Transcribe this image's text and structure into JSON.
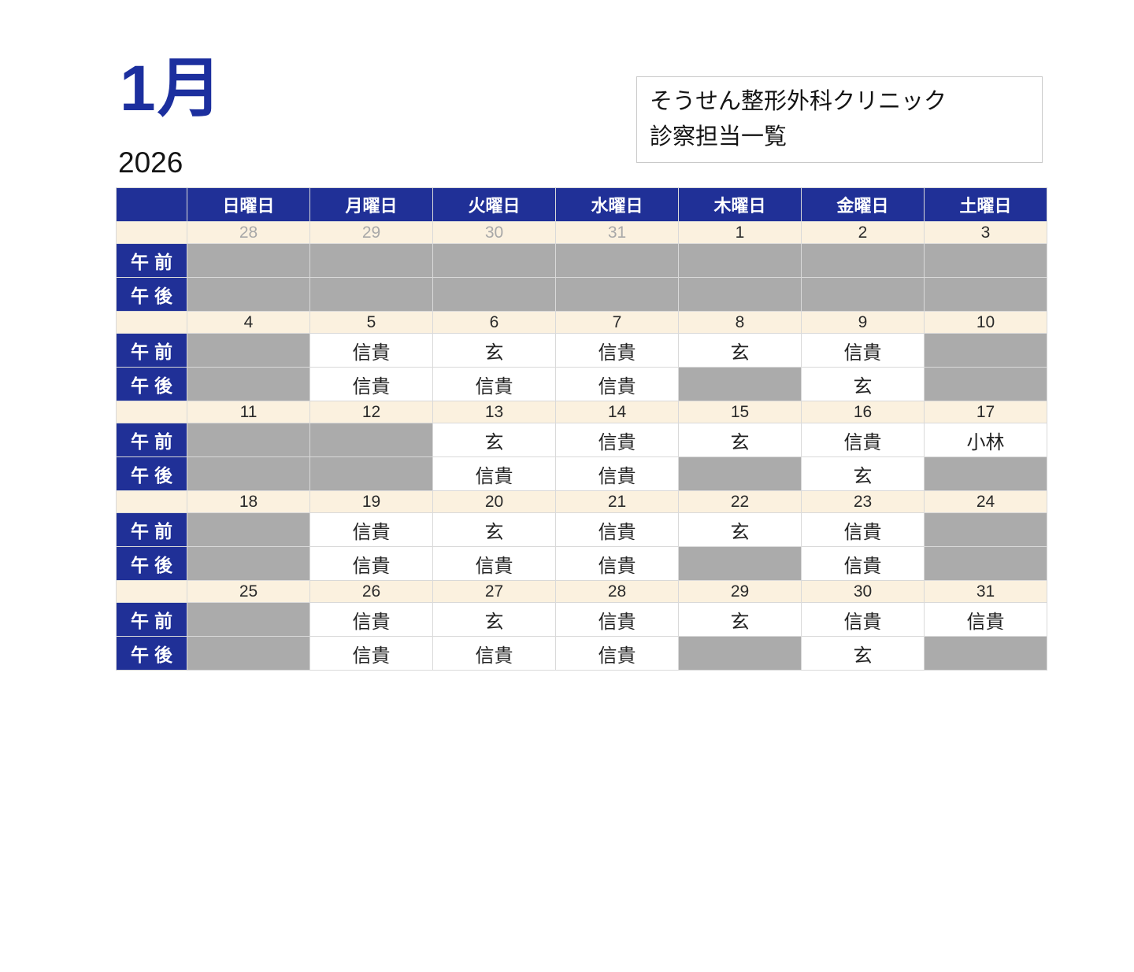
{
  "header": {
    "month_label": "1月",
    "year": "2026",
    "clinic_name": "そうせん整形外科クリニック",
    "subtitle": "診察担当一覧"
  },
  "colors": {
    "accent_blue": "#203097",
    "title_blue": "#1c2f9e",
    "date_row_cream": "#fbf1df",
    "closed_cell_gray": "#ababab",
    "other_month_text": "#a8a8a8",
    "grid_line": "#d9d9d9"
  },
  "table": {
    "weekday_headers": [
      "日曜日",
      "月曜日",
      "火曜日",
      "水曜日",
      "木曜日",
      "金曜日",
      "土曜日"
    ],
    "row_labels": {
      "am": "午前",
      "pm": "午後"
    },
    "weeks": [
      {
        "dates": [
          {
            "day": "28",
            "other_month": true
          },
          {
            "day": "29",
            "other_month": true
          },
          {
            "day": "30",
            "other_month": true
          },
          {
            "day": "31",
            "other_month": true
          },
          {
            "day": "1",
            "other_month": false
          },
          {
            "day": "2",
            "other_month": false
          },
          {
            "day": "3",
            "other_month": false
          }
        ],
        "am": [
          null,
          null,
          null,
          null,
          null,
          null,
          null
        ],
        "pm": [
          null,
          null,
          null,
          null,
          null,
          null,
          null
        ]
      },
      {
        "dates": [
          {
            "day": "4",
            "other_month": false
          },
          {
            "day": "5",
            "other_month": false
          },
          {
            "day": "6",
            "other_month": false
          },
          {
            "day": "7",
            "other_month": false
          },
          {
            "day": "8",
            "other_month": false
          },
          {
            "day": "9",
            "other_month": false
          },
          {
            "day": "10",
            "other_month": false
          }
        ],
        "am": [
          null,
          "信貴",
          "玄",
          "信貴",
          "玄",
          "信貴",
          null
        ],
        "pm": [
          null,
          "信貴",
          "信貴",
          "信貴",
          null,
          "玄",
          null
        ]
      },
      {
        "dates": [
          {
            "day": "11",
            "other_month": false
          },
          {
            "day": "12",
            "other_month": false
          },
          {
            "day": "13",
            "other_month": false
          },
          {
            "day": "14",
            "other_month": false
          },
          {
            "day": "15",
            "other_month": false
          },
          {
            "day": "16",
            "other_month": false
          },
          {
            "day": "17",
            "other_month": false
          }
        ],
        "am": [
          null,
          null,
          "玄",
          "信貴",
          "玄",
          "信貴",
          "小林"
        ],
        "pm": [
          null,
          null,
          "信貴",
          "信貴",
          null,
          "玄",
          null
        ]
      },
      {
        "dates": [
          {
            "day": "18",
            "other_month": false
          },
          {
            "day": "19",
            "other_month": false
          },
          {
            "day": "20",
            "other_month": false
          },
          {
            "day": "21",
            "other_month": false
          },
          {
            "day": "22",
            "other_month": false
          },
          {
            "day": "23",
            "other_month": false
          },
          {
            "day": "24",
            "other_month": false
          }
        ],
        "am": [
          null,
          "信貴",
          "玄",
          "信貴",
          "玄",
          "信貴",
          null
        ],
        "pm": [
          null,
          "信貴",
          "信貴",
          "信貴",
          null,
          "信貴",
          null
        ]
      },
      {
        "dates": [
          {
            "day": "25",
            "other_month": false
          },
          {
            "day": "26",
            "other_month": false
          },
          {
            "day": "27",
            "other_month": false
          },
          {
            "day": "28",
            "other_month": false
          },
          {
            "day": "29",
            "other_month": false
          },
          {
            "day": "30",
            "other_month": false
          },
          {
            "day": "31",
            "other_month": false
          }
        ],
        "am": [
          null,
          "信貴",
          "玄",
          "信貴",
          "玄",
          "信貴",
          "信貴"
        ],
        "pm": [
          null,
          "信貴",
          "信貴",
          "信貴",
          null,
          "玄",
          null
        ]
      }
    ]
  }
}
